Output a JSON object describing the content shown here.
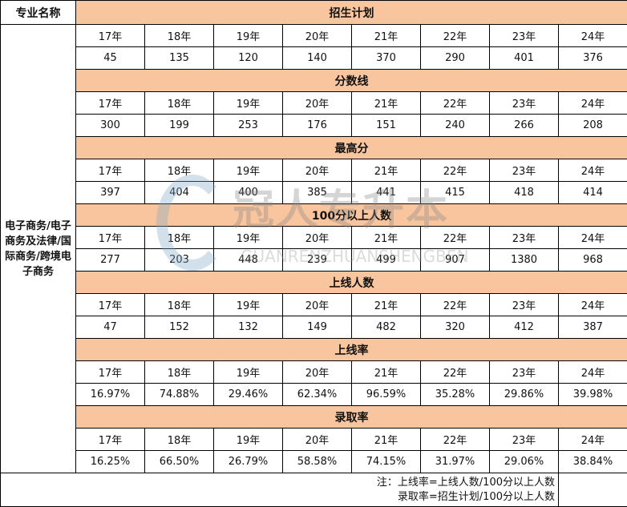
{
  "header": {
    "col_name": "专业名称",
    "major": "电子商务/电子商务及法律/国际商务/跨境电子商务"
  },
  "years": [
    "17年",
    "18年",
    "19年",
    "20年",
    "21年",
    "22年",
    "23年",
    "24年"
  ],
  "sections": [
    {
      "title": "招生计划",
      "values": [
        "45",
        "135",
        "120",
        "140",
        "370",
        "290",
        "401",
        "376"
      ]
    },
    {
      "title": "分数线",
      "values": [
        "300",
        "199",
        "253",
        "176",
        "151",
        "240",
        "266",
        "208"
      ]
    },
    {
      "title": "最高分",
      "values": [
        "397",
        "404",
        "400",
        "385",
        "441",
        "415",
        "418",
        "414"
      ]
    },
    {
      "title": "100分以上人数",
      "values": [
        "277",
        "203",
        "448",
        "239",
        "499",
        "907",
        "1380",
        "968"
      ]
    },
    {
      "title": "上线人数",
      "values": [
        "47",
        "152",
        "132",
        "149",
        "482",
        "320",
        "412",
        "387"
      ]
    },
    {
      "title": "上线率",
      "values": [
        "16.97%",
        "74.88%",
        "29.46%",
        "62.34%",
        "96.59%",
        "35.28%",
        "29.86%",
        "39.98%"
      ]
    },
    {
      "title": "录取率",
      "values": [
        "16.25%",
        "66.50%",
        "26.79%",
        "58.58%",
        "74.15%",
        "31.97%",
        "29.06%",
        "38.84%"
      ]
    }
  ],
  "note": {
    "line1": "注：上线率=上线人数/100分以上人数",
    "line2": "录取率=招生计划/100分以上人数"
  },
  "watermark": {
    "cn": "冠人专升本",
    "en": "GUANRENZHUANSHENGBEN"
  },
  "colors": {
    "section_header": "#F8C59E"
  }
}
